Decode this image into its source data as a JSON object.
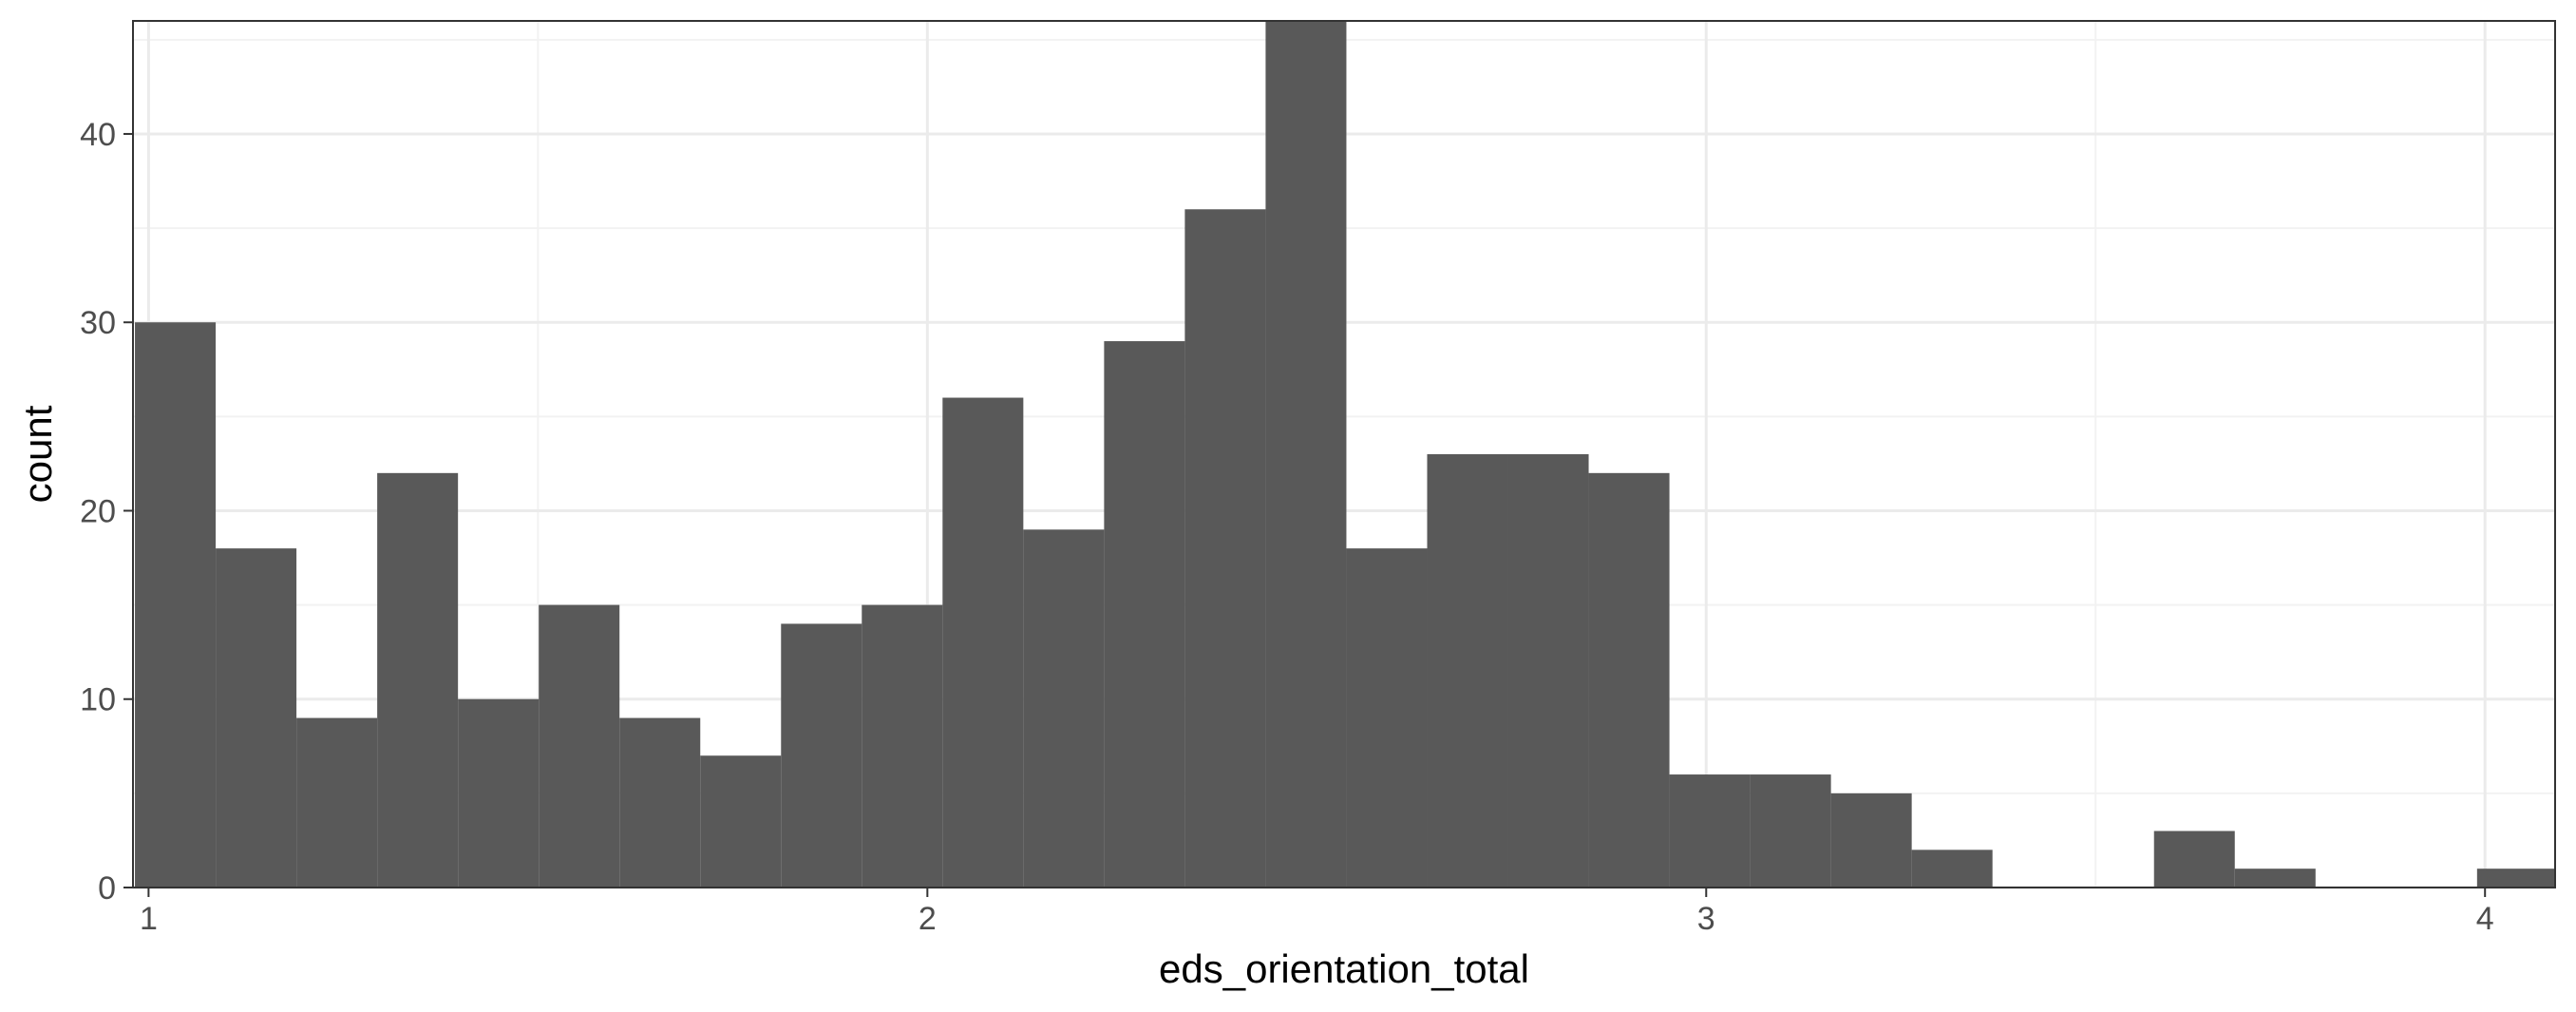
{
  "chart_data": {
    "type": "bar",
    "histogram": true,
    "xlabel": "eds_orientation_total",
    "ylabel": "count",
    "xlim": [
      0.98,
      4.09
    ],
    "ylim": [
      0,
      46
    ],
    "x_ticks": [
      1,
      2,
      3,
      4
    ],
    "x_tick_labels": [
      "1",
      "2",
      "3",
      "4"
    ],
    "y_ticks": [
      0,
      10,
      20,
      30,
      40
    ],
    "y_tick_labels": [
      "0",
      "10",
      "20",
      "30",
      "40"
    ],
    "grid": true,
    "bin_edges": [
      0.9825,
      1.0862,
      1.1899,
      1.2936,
      1.3973,
      1.501,
      1.6047,
      1.7084,
      1.8121,
      1.9158,
      2.0195,
      2.1232,
      2.2269,
      2.3306,
      2.4343,
      2.538,
      2.6417,
      2.7454,
      2.8491,
      2.9528,
      3.0565,
      3.1602,
      3.2639,
      3.3676,
      3.4713,
      3.575,
      3.6787,
      3.7824,
      3.8861,
      3.9898,
      4.0935
    ],
    "values": [
      30,
      18,
      9,
      22,
      10,
      15,
      9,
      7,
      14,
      15,
      26,
      19,
      29,
      36,
      46,
      18,
      23,
      23,
      22,
      6,
      6,
      5,
      2,
      0,
      0,
      3,
      1,
      0,
      0,
      1
    ],
    "colors": {
      "bar_fill": "#595959",
      "panel_background": "#ffffff",
      "panel_border": "#333333",
      "grid_major": "#ebebeb",
      "grid_minor": "#f2f2f2"
    }
  }
}
